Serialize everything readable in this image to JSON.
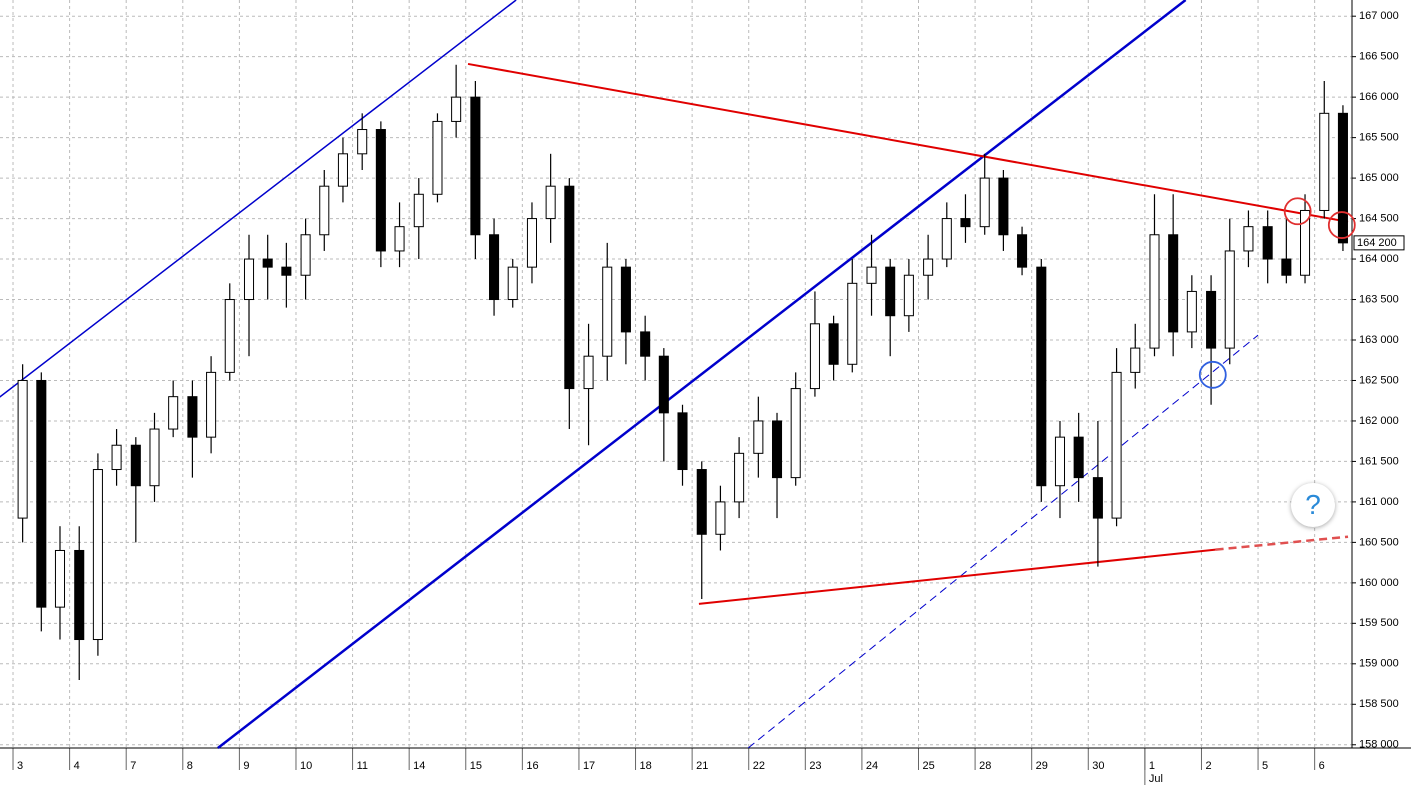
{
  "chart_data": {
    "type": "candlestick",
    "x": [
      0.17,
      0.5,
      0.83,
      1.17,
      1.5,
      1.83,
      2.17,
      2.5,
      2.83,
      3.17,
      3.5,
      3.83,
      4.17,
      4.5,
      4.83,
      5.17,
      5.5,
      5.83,
      6.17,
      6.5,
      6.83,
      7.17,
      7.5,
      7.83,
      8.17,
      8.5,
      8.83,
      9.17,
      9.5,
      9.83,
      10.17,
      10.5,
      10.83,
      11.17,
      11.5,
      11.83,
      12.17,
      12.5,
      12.83,
      13.17,
      13.5,
      13.83,
      14.17,
      14.5,
      14.83,
      15.17,
      15.5,
      15.83,
      16.17,
      16.5,
      16.83,
      17.17,
      17.5,
      17.83,
      18.17,
      18.5,
      18.83,
      19.17,
      19.5,
      19.83,
      20.17,
      20.5,
      20.83,
      21.17,
      21.5,
      21.83,
      22.17,
      22.5,
      22.83,
      23.17,
      23.5
    ],
    "open": [
      160800,
      162500,
      159700,
      160400,
      159300,
      161400,
      161700,
      161200,
      161900,
      162300,
      161800,
      162600,
      163500,
      164000,
      163900,
      163800,
      164300,
      164900,
      165300,
      165600,
      164100,
      164400,
      164800,
      165700,
      166000,
      164300,
      163500,
      163900,
      164500,
      164900,
      162400,
      162800,
      163900,
      163100,
      162800,
      162100,
      161400,
      160600,
      161000,
      161600,
      162000,
      161300,
      162400,
      163200,
      162700,
      163700,
      163900,
      163300,
      163800,
      164000,
      164500,
      164400,
      165000,
      164300,
      163900,
      161200,
      161800,
      161300,
      160800,
      162600,
      162900,
      164300,
      163100,
      163600,
      162900,
      164100,
      164400,
      164000,
      163800,
      164600,
      165800
    ],
    "high": [
      162700,
      162600,
      160700,
      160700,
      161600,
      161900,
      161800,
      162100,
      162500,
      162500,
      162800,
      163700,
      164300,
      164300,
      164200,
      164500,
      165100,
      165500,
      165800,
      165700,
      164700,
      165000,
      165800,
      166400,
      166200,
      164500,
      164000,
      164700,
      165300,
      165000,
      163200,
      164200,
      164000,
      163300,
      162900,
      162200,
      161500,
      161200,
      161800,
      162300,
      162100,
      162600,
      163600,
      163300,
      164000,
      164300,
      164000,
      164000,
      164300,
      164700,
      164800,
      165300,
      165100,
      164400,
      164000,
      162000,
      162100,
      162000,
      162900,
      163200,
      164800,
      164800,
      163800,
      163800,
      164500,
      164600,
      164600,
      164500,
      164800,
      166200,
      165900
    ],
    "low": [
      160500,
      159400,
      159300,
      158800,
      159100,
      161200,
      160500,
      161000,
      161800,
      161300,
      161600,
      162500,
      162800,
      163500,
      163400,
      163500,
      164100,
      164700,
      165100,
      163900,
      163900,
      164000,
      164700,
      165500,
      164000,
      163300,
      163400,
      163700,
      164200,
      161900,
      161700,
      162500,
      162700,
      162500,
      161500,
      161200,
      159800,
      160400,
      160800,
      161300,
      160800,
      161200,
      162300,
      162500,
      162600,
      163300,
      162800,
      163100,
      163500,
      163900,
      164200,
      164300,
      164100,
      163800,
      161000,
      160800,
      161000,
      160200,
      160700,
      162400,
      162800,
      162800,
      162900,
      162200,
      162700,
      163900,
      163700,
      163700,
      163700,
      164500,
      164100
    ],
    "close": [
      162500,
      159700,
      160400,
      159300,
      161400,
      161700,
      161200,
      161900,
      162300,
      161800,
      162600,
      163500,
      164000,
      163900,
      163800,
      164300,
      164900,
      165300,
      165600,
      164100,
      164400,
      164800,
      165700,
      166000,
      164300,
      163500,
      163900,
      164500,
      164900,
      162400,
      162800,
      163900,
      163100,
      162800,
      162100,
      161400,
      160600,
      161000,
      161600,
      162000,
      161300,
      162400,
      163200,
      162700,
      163700,
      163900,
      163300,
      163800,
      164000,
      164500,
      164400,
      165000,
      164300,
      163900,
      161200,
      161800,
      161300,
      160800,
      162600,
      162900,
      164300,
      163100,
      163600,
      162900,
      164100,
      164400,
      164000,
      163800,
      164600,
      165800,
      164200
    ],
    "color": "#000000",
    "xlim": [
      -0.23,
      23.66
    ],
    "xticks": [
      {
        "value": 0,
        "label": "3"
      },
      {
        "value": 1,
        "label": "4"
      },
      {
        "value": 2,
        "label": "7"
      },
      {
        "value": 3,
        "label": "8"
      },
      {
        "value": 4,
        "label": "9"
      },
      {
        "value": 5,
        "label": "10"
      },
      {
        "value": 6,
        "label": "11"
      },
      {
        "value": 7,
        "label": "14"
      },
      {
        "value": 8,
        "label": "15"
      },
      {
        "value": 9,
        "label": "16"
      },
      {
        "value": 10,
        "label": "17"
      },
      {
        "value": 11,
        "label": "18"
      },
      {
        "value": 12,
        "label": "21"
      },
      {
        "value": 13,
        "label": "22"
      },
      {
        "value": 14,
        "label": "23"
      },
      {
        "value": 15,
        "label": "24"
      },
      {
        "value": 16,
        "label": "25"
      },
      {
        "value": 17,
        "label": "28"
      },
      {
        "value": 18,
        "label": "29"
      },
      {
        "value": 19,
        "label": "30"
      },
      {
        "value": 20,
        "label": "1"
      },
      {
        "value": 21,
        "label": "2"
      },
      {
        "value": 22,
        "label": "5"
      },
      {
        "value": 23,
        "label": "6"
      }
    ],
    "month_label": {
      "x": 20,
      "text": "Jul"
    },
    "ylim": [
      157960,
      167200
    ],
    "yticks": [
      {
        "value": 158000,
        "label": "158 000"
      },
      {
        "value": 158500,
        "label": "158 500"
      },
      {
        "value": 159000,
        "label": "159 000"
      },
      {
        "value": 159500,
        "label": "159 500"
      },
      {
        "value": 160000,
        "label": "160 000"
      },
      {
        "value": 160500,
        "label": "160 500"
      },
      {
        "value": 161000,
        "label": "161 000"
      },
      {
        "value": 161500,
        "label": "161 500"
      },
      {
        "value": 162000,
        "label": "162 000"
      },
      {
        "value": 162500,
        "label": "162 500"
      },
      {
        "value": 163000,
        "label": "163 000"
      },
      {
        "value": 163500,
        "label": "163 500"
      },
      {
        "value": 164000,
        "label": "164 000"
      },
      {
        "value": 164500,
        "label": "164 500"
      },
      {
        "value": 165000,
        "label": "165 000"
      },
      {
        "value": 165500,
        "label": "165 500"
      },
      {
        "value": 166000,
        "label": "166 000"
      },
      {
        "value": 166500,
        "label": "166 500"
      },
      {
        "value": 167000,
        "label": "167 000"
      }
    ],
    "grid": true,
    "last_price": {
      "value": 164200,
      "label": "164 200"
    },
    "lines": [
      {
        "color": "#0000cc",
        "width": 1.5,
        "dashed": false,
        "x": [
          -0.3,
          8.89
        ],
        "y": [
          162260,
          167200
        ]
      },
      {
        "color": "#0000cc",
        "width": 2.5,
        "dashed": false,
        "x": [
          3.62,
          20.72
        ],
        "y": [
          157960,
          167200
        ]
      },
      {
        "color": "#0000cc",
        "width": 1,
        "dashed": true,
        "x": [
          12.99,
          22.0
        ],
        "y": [
          157960,
          163060
        ]
      },
      {
        "color": "#e00000",
        "width": 2,
        "dashed": false,
        "x": [
          8.04,
          23.59
        ],
        "y": [
          166410,
          164460
        ]
      },
      {
        "color": "#e00000",
        "width": 2,
        "dashed": false,
        "x": [
          12.12,
          21.25
        ],
        "y": [
          159740,
          160410
        ]
      },
      {
        "color": "#e05050",
        "width": 2.5,
        "dashed": true,
        "x": [
          21.25,
          23.59
        ],
        "y": [
          160410,
          160570
        ]
      }
    ],
    "circles": [
      {
        "color": "#e03030",
        "x": 22.7,
        "y": 164590
      },
      {
        "color": "#e03030",
        "x": 23.48,
        "y": 164420
      },
      {
        "color": "#3060e0",
        "x": 21.2,
        "y": 162570
      }
    ]
  },
  "ui": {
    "help": "?"
  }
}
